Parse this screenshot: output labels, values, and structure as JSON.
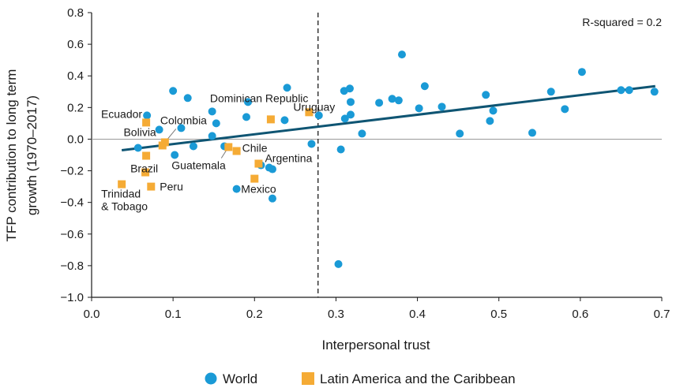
{
  "chart_data": {
    "type": "scatter",
    "xlabel": "Interpersonal trust",
    "ylabel_lines": [
      "TFP contribution to long term",
      "growth (1970–2017)"
    ],
    "xlim": [
      0.0,
      0.7
    ],
    "ylim": [
      -1.0,
      0.8
    ],
    "xticks": [
      "0.0",
      "0.1",
      "0.2",
      "0.3",
      "0.4",
      "0.5",
      "0.6",
      "0.7"
    ],
    "yticks": [
      "0.8",
      "0.6",
      "0.4",
      "0.2",
      "0.0",
      "−0.2",
      "−0.4",
      "−0.6",
      "−0.8",
      "−1.0"
    ],
    "annotation": "R-squared = 0.2",
    "reference_line_x": 0.278,
    "trend_line": {
      "x": [
        0.037,
        0.692
      ],
      "y": [
        -0.07,
        0.335
      ],
      "color": "#0f5573"
    },
    "legend": {
      "placement": "bottom-center"
    },
    "series": [
      {
        "name": "World",
        "marker": "circle",
        "color": "#1a9ad6",
        "points": [
          [
            0.057,
            -0.055
          ],
          [
            0.068,
            0.15
          ],
          [
            0.083,
            0.06
          ],
          [
            0.1,
            0.305
          ],
          [
            0.102,
            -0.1
          ],
          [
            0.11,
            0.07
          ],
          [
            0.118,
            0.26
          ],
          [
            0.125,
            -0.045
          ],
          [
            0.148,
            0.175
          ],
          [
            0.148,
            0.02
          ],
          [
            0.153,
            0.1
          ],
          [
            0.163,
            -0.045
          ],
          [
            0.178,
            -0.315
          ],
          [
            0.19,
            0.14
          ],
          [
            0.192,
            0.235
          ],
          [
            0.208,
            -0.165
          ],
          [
            0.218,
            -0.18
          ],
          [
            0.222,
            -0.19
          ],
          [
            0.222,
            -0.375
          ],
          [
            0.237,
            0.12
          ],
          [
            0.24,
            0.325
          ],
          [
            0.27,
            -0.03
          ],
          [
            0.279,
            0.15
          ],
          [
            0.303,
            -0.79
          ],
          [
            0.306,
            -0.065
          ],
          [
            0.31,
            0.305
          ],
          [
            0.311,
            0.13
          ],
          [
            0.317,
            0.32
          ],
          [
            0.318,
            0.235
          ],
          [
            0.318,
            0.155
          ],
          [
            0.332,
            0.035
          ],
          [
            0.353,
            0.23
          ],
          [
            0.369,
            0.255
          ],
          [
            0.377,
            0.245
          ],
          [
            0.381,
            0.535
          ],
          [
            0.402,
            0.195
          ],
          [
            0.409,
            0.335
          ],
          [
            0.43,
            0.205
          ],
          [
            0.452,
            0.035
          ],
          [
            0.484,
            0.28
          ],
          [
            0.489,
            0.115
          ],
          [
            0.493,
            0.18
          ],
          [
            0.541,
            0.04
          ],
          [
            0.564,
            0.3
          ],
          [
            0.581,
            0.19
          ],
          [
            0.602,
            0.425
          ],
          [
            0.65,
            0.31
          ],
          [
            0.66,
            0.31
          ],
          [
            0.691,
            0.3
          ]
        ]
      },
      {
        "name": "Latin America and the Caribbean",
        "marker": "square",
        "color": "#f5ab35",
        "points": [
          {
            "x": 0.037,
            "y": -0.285,
            "label_lines": [
              "Trinidad",
              "& Tobago"
            ]
          },
          {
            "x": 0.066,
            "y": -0.21
          },
          {
            "x": 0.067,
            "y": 0.105,
            "label_lines": [
              "Ecuador"
            ]
          },
          {
            "x": 0.067,
            "y": -0.105,
            "label_lines": [
              "Brazil"
            ]
          },
          {
            "x": 0.073,
            "y": -0.3,
            "label_lines": [
              "Peru"
            ]
          },
          {
            "x": 0.087,
            "y": -0.04,
            "label_lines": [
              "Bolivia"
            ]
          },
          {
            "x": 0.09,
            "y": -0.02,
            "label_lines": [
              "Colombia"
            ]
          },
          {
            "x": 0.168,
            "y": -0.05,
            "label_lines": [
              "Guatemala"
            ]
          },
          {
            "x": 0.178,
            "y": -0.075,
            "label_lines": [
              "Chile"
            ]
          },
          {
            "x": 0.2,
            "y": -0.25,
            "label_lines": [
              "Mexico"
            ]
          },
          {
            "x": 0.205,
            "y": -0.155,
            "label_lines": [
              "Argentina"
            ]
          },
          {
            "x": 0.22,
            "y": 0.125,
            "label_lines": [
              "Dominican Republic"
            ]
          },
          {
            "x": 0.267,
            "y": 0.17,
            "label_lines": [
              "Uruguay"
            ]
          }
        ]
      }
    ]
  }
}
